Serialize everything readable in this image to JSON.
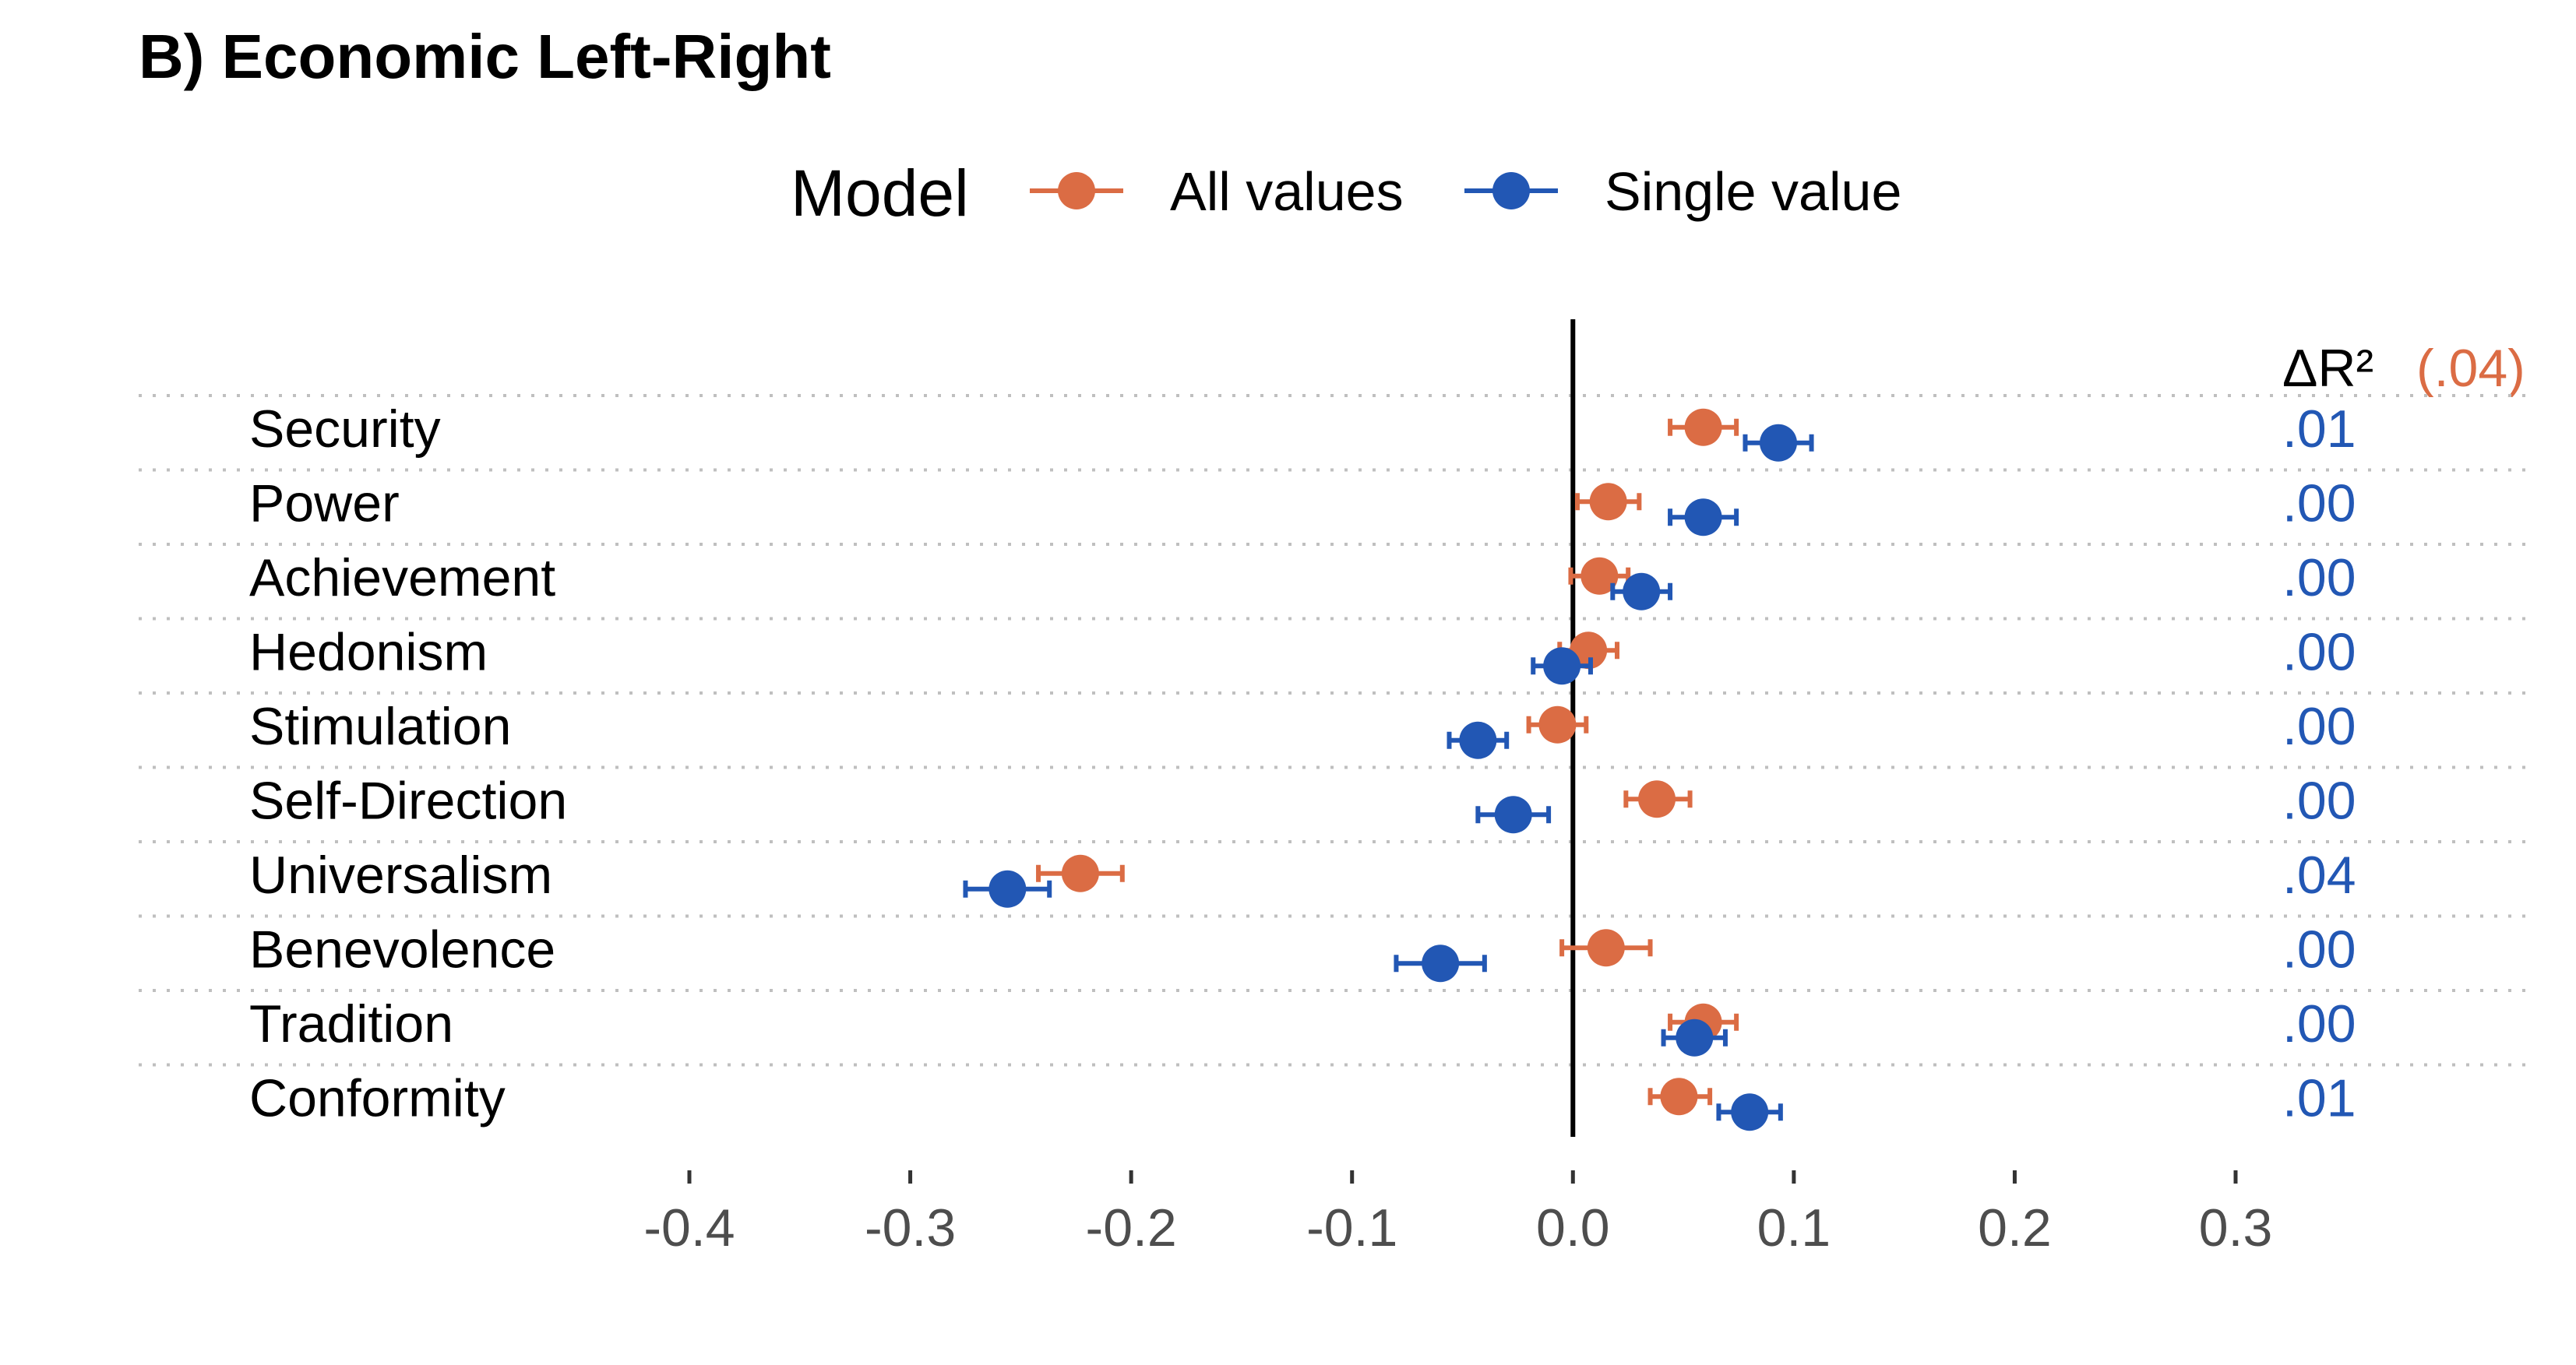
{
  "title": "B) Economic Left-Right",
  "colors": {
    "all_values": "#DB6C44",
    "single_value": "#2257B4",
    "zero_line": "#000000",
    "grid": "#bfbfbf"
  },
  "legend": {
    "title": "Model",
    "items": [
      {
        "label": "All values",
        "color": "#DB6C44"
      },
      {
        "label": "Single value",
        "color": "#2257B4"
      }
    ]
  },
  "r2_header": {
    "label": "ΔR²",
    "total": "(.04)"
  },
  "chart_data": {
    "type": "scatter",
    "title": "B) Economic Left-Right",
    "orientation": "horizontal-dotplot-with-error-bars",
    "xlim": [
      -0.4,
      0.3
    ],
    "x_ticks": [
      -0.4,
      -0.3,
      -0.2,
      -0.1,
      0.0,
      0.1,
      0.2,
      0.3
    ],
    "x_tick_labels": [
      "-0.4",
      "-0.3",
      "-0.2",
      "-0.1",
      "0.0",
      "0.1",
      "0.2",
      "0.3"
    ],
    "reference_line": 0,
    "categories": [
      "Security",
      "Power",
      "Achievement",
      "Hedonism",
      "Stimulation",
      "Self-Direction",
      "Universalism",
      "Benevolence",
      "Tradition",
      "Conformity"
    ],
    "series": [
      {
        "name": "All values",
        "values": [
          0.059,
          0.016,
          0.012,
          0.007,
          -0.007,
          0.038,
          -0.223,
          0.015,
          0.059,
          0.048
        ],
        "lower": [
          0.044,
          0.002,
          -0.001,
          -0.006,
          -0.02,
          0.024,
          -0.242,
          -0.005,
          0.044,
          0.035
        ],
        "upper": [
          0.074,
          0.03,
          0.025,
          0.02,
          0.006,
          0.053,
          -0.204,
          0.035,
          0.074,
          0.062
        ]
      },
      {
        "name": "Single value",
        "values": [
          0.093,
          0.059,
          0.031,
          -0.005,
          -0.043,
          -0.027,
          -0.256,
          -0.06,
          0.055,
          0.08
        ],
        "lower": [
          0.078,
          0.044,
          0.018,
          -0.018,
          -0.056,
          -0.043,
          -0.275,
          -0.08,
          0.041,
          0.066
        ],
        "upper": [
          0.108,
          0.074,
          0.044,
          0.008,
          -0.03,
          -0.011,
          -0.237,
          -0.04,
          0.069,
          0.094
        ]
      }
    ],
    "delta_r2": [
      ".01",
      ".00",
      ".00",
      ".00",
      ".00",
      ".00",
      ".04",
      ".00",
      ".00",
      ".01"
    ]
  }
}
